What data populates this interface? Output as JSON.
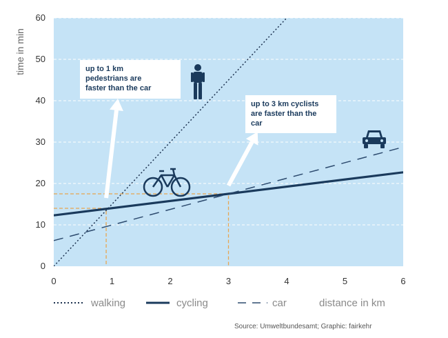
{
  "chart_data": {
    "type": "line",
    "xlabel": "distance in km",
    "ylabel": "time in min",
    "xlim": [
      0,
      6
    ],
    "ylim": [
      0,
      60
    ],
    "x_ticks": [
      "0",
      "1",
      "2",
      "3",
      "4",
      "5",
      "6"
    ],
    "y_ticks": [
      "0",
      "10",
      "20",
      "30",
      "40",
      "50",
      "60"
    ],
    "grid": "horizontal dashed",
    "legend_position": "bottom",
    "series": [
      {
        "name": "walking",
        "style": "dotted",
        "color": "#1a2f4d",
        "x": [
          0,
          4
        ],
        "y": [
          0,
          60
        ]
      },
      {
        "name": "cycling",
        "style": "solid",
        "color": "#1a3a5c",
        "x": [
          0,
          6
        ],
        "y": [
          12.3,
          22.7
        ]
      },
      {
        "name": "car",
        "style": "dashed",
        "color": "#2c4a6e",
        "x": [
          0,
          6
        ],
        "y": [
          6.2,
          28.8
        ]
      }
    ],
    "reference_lines": [
      {
        "x": 0.9,
        "y": 14
      },
      {
        "x": 3,
        "y": 17.5
      }
    ],
    "annotations": [
      {
        "text": "up to 1 km\npedestrians are\nfaster than the car"
      },
      {
        "text": "up to 3 km cyclists\nare faster than the\ncar"
      }
    ],
    "source": "Source: Umweltbundesamt; Graphic: fairkehr"
  },
  "colors": {
    "plot_background": "#c5e3f6",
    "grid": "#ffffff",
    "reference": "#e8a550",
    "arrow": "#ffffff",
    "icon": "#1a3a5c"
  },
  "icons": [
    "pedestrian-icon",
    "bicycle-icon",
    "car-icon"
  ]
}
